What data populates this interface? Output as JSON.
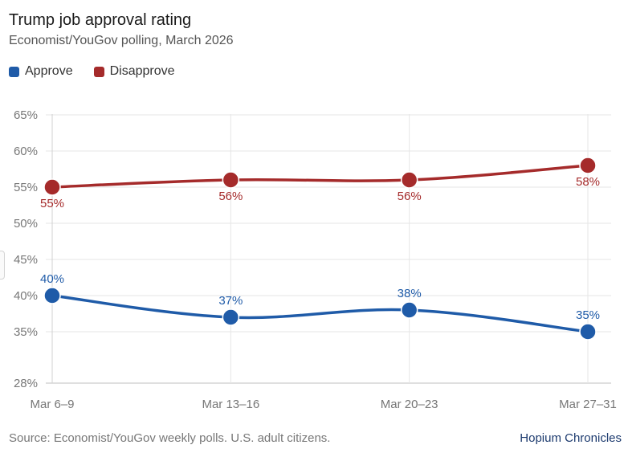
{
  "header": {
    "title": "Trump job approval rating",
    "subtitle": "Economist/YouGov polling, March 2026"
  },
  "legend": [
    {
      "label": "Approve",
      "color": "#1f5ba8"
    },
    {
      "label": "Disapprove",
      "color": "#a52b2b"
    }
  ],
  "chart_data": {
    "type": "line",
    "title": "Trump job approval rating",
    "subtitle": "Economist/YouGov polling, March 2026",
    "categories": [
      "Mar 6–9",
      "Mar 13–16",
      "Mar 20–23",
      "Mar 27–31"
    ],
    "y_ticks": [
      28,
      35,
      40,
      45,
      50,
      55,
      60,
      65
    ],
    "y_tick_labels": [
      "28%",
      "35%",
      "40%",
      "45%",
      "50%",
      "55%",
      "60%",
      "65%"
    ],
    "ylim": [
      28,
      65
    ],
    "grid": true,
    "legend_position": "top-left",
    "series": [
      {
        "name": "Approve",
        "color": "#1f5ba8",
        "values": [
          40,
          37,
          38,
          35
        ],
        "labels": [
          "40%",
          "37%",
          "38%",
          "35%"
        ],
        "label_position": "above"
      },
      {
        "name": "Disapprove",
        "color": "#a52b2b",
        "values": [
          55,
          56,
          56,
          58
        ],
        "labels": [
          "55%",
          "56%",
          "56%",
          "58%"
        ],
        "label_position": "below"
      }
    ]
  },
  "footer": {
    "source": "Source: Economist/YouGov weekly polls. U.S. adult citizens.",
    "brand": "Hopium Chronicles"
  }
}
